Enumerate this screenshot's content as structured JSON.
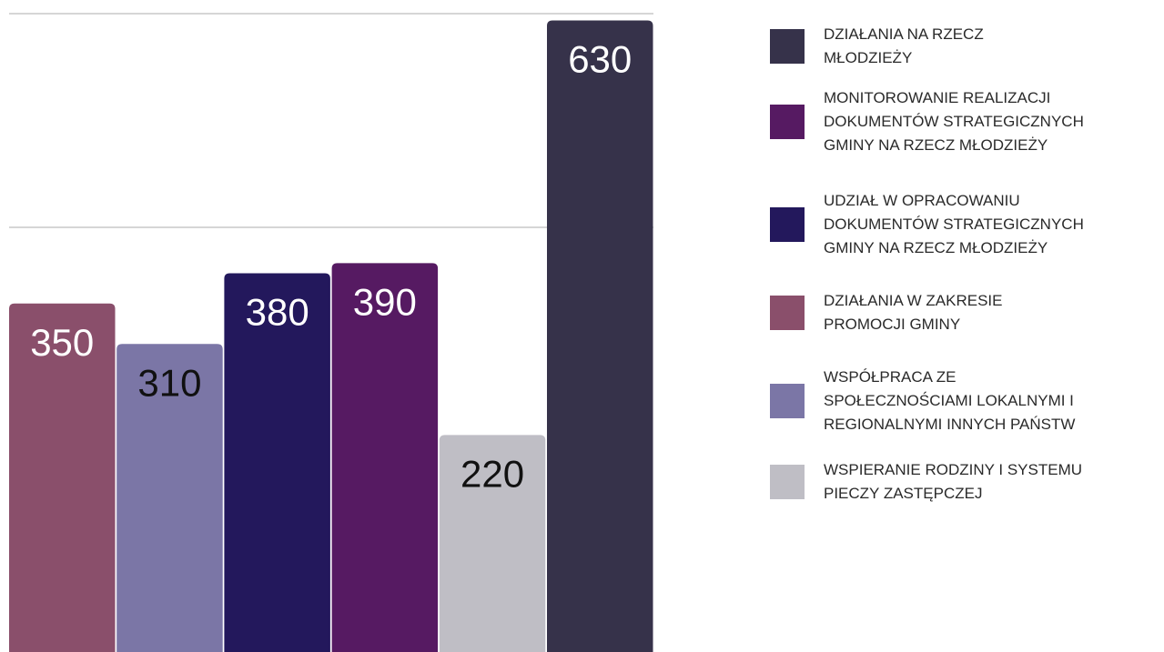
{
  "chart_data": {
    "type": "bar",
    "categories": [
      null,
      null,
      null,
      null,
      null,
      null
    ],
    "series": [
      {
        "name": "DZIAŁANIA NA RZECZ\nMŁODZIEŻY",
        "color": "#36324a",
        "values": [
          null,
          null,
          null,
          null,
          null,
          630
        ]
      },
      {
        "name": "MONITOROWANIE REALIZACJI\nDOKUMENTÓW STRATEGICZNYCH\nGMINY NA RZECZ MŁODZIEŻY",
        "color": "#561a62",
        "values": [
          null,
          null,
          null,
          390,
          null,
          null
        ]
      },
      {
        "name": "UDZIAŁ W  OPRACOWANIU\nDOKUMENTÓW STRATEGICZNYCH\nGMINY NA RZECZ MŁODZIEŻY",
        "color": "#23185c",
        "values": [
          null,
          null,
          380,
          null,
          null,
          null
        ]
      },
      {
        "name": "DZIAŁANIA W ZAKRESIE\nPROMOCJI GMINY",
        "color": "#8a4f6b",
        "values": [
          350,
          null,
          null,
          null,
          null,
          null
        ]
      },
      {
        "name": "WSPÓŁPRACA ZE\nSPOŁECZNOŚCIAMI LOKALNYMI I\nREGIONALNYMI INNYCH PAŃSTW",
        "color": "#7b76a6",
        "values": [
          null,
          310,
          null,
          null,
          null,
          null
        ]
      },
      {
        "name": "WSPIERANIE RODZINY I SYSTEMU\nPIECZY ZASTĘPCZEJ",
        "color": "#bfbec5",
        "values": [
          null,
          null,
          null,
          null,
          220,
          null
        ]
      }
    ],
    "ylim": [
      0,
      650
    ]
  }
}
